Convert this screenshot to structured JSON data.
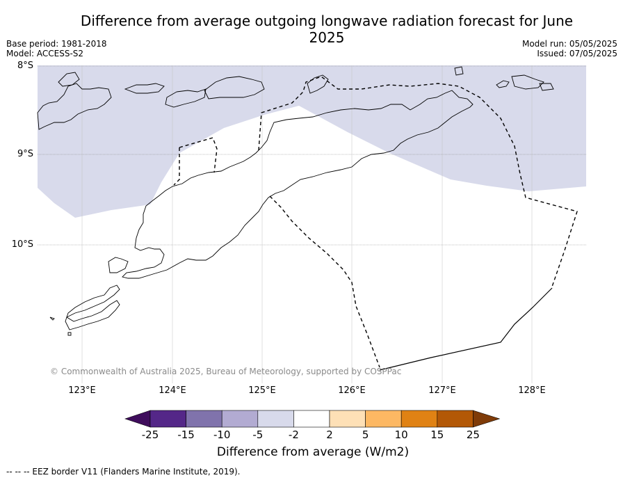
{
  "title": "Difference from average outgoing longwave radiation forecast for June 2025",
  "base_period": "Base period: 1981-2018",
  "model": "Model: ACCESS-S2",
  "model_run": "Model run: 05/05/2025",
  "issued": "Issued: 07/05/2025",
  "copyright": "© Commonwealth of Australia 2025, Bureau of Meteorology, supported by COSPPac",
  "lat_labels": [
    "8°S",
    "9°S",
    "10°S"
  ],
  "lon_labels": [
    "123°E",
    "124°E",
    "125°E",
    "126°E",
    "127°E",
    "128°E"
  ],
  "colorbar": {
    "ticks": [
      "-25",
      "-15",
      "-10",
      "-5",
      "-2",
      "2",
      "5",
      "10",
      "15",
      "25"
    ],
    "colors": [
      "#3f0d5c",
      "#542788",
      "#8073ac",
      "#b2abd2",
      "#d8daeb",
      "#ffffff",
      "#fee0b6",
      "#fdb863",
      "#e08214",
      "#b35806",
      "#7f3b08"
    ],
    "label": "Difference from average (W/m2)"
  },
  "map": {
    "shaded_category_color": "#d8daeb",
    "shaded_category": "-5 to -2"
  },
  "footnote": "--  --  -- EEZ border V11 (Flanders Marine Institute, 2019)."
}
